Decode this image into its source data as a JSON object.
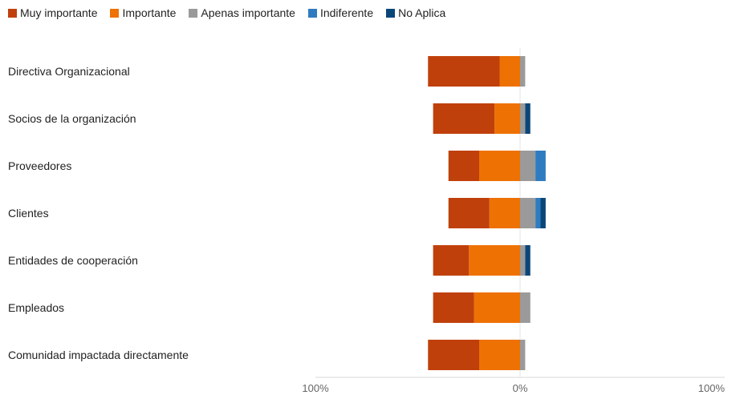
{
  "chart_data": {
    "type": "bar",
    "orientation": "horizontal",
    "stacked": "diverging",
    "legend_position": "top-left",
    "grid": false,
    "categories": [
      "Directiva Organizacional",
      "Socios de la organización",
      "Proveedores",
      "Clientes",
      "Entidades de cooperación",
      "Empleados",
      "Comunidad impactada directamente"
    ],
    "series": [
      {
        "name": "Muy importante",
        "color": "#c0400b",
        "values": [
          35,
          30,
          15,
          20,
          17.5,
          20,
          25
        ]
      },
      {
        "name": "Importante",
        "color": "#ee7103",
        "values": [
          10,
          12.5,
          20,
          15,
          25,
          22.5,
          20
        ]
      },
      {
        "name": "Apenas importante",
        "color": "#9a9a9a",
        "values": [
          2.5,
          2.5,
          7.5,
          7.5,
          2.5,
          5,
          2.5
        ]
      },
      {
        "name": "Indiferente",
        "color": "#2f7bbf",
        "values": [
          0,
          0,
          5,
          2.5,
          0,
          0,
          0
        ]
      },
      {
        "name": "No Aplica",
        "color": "#0b4678",
        "values": [
          0,
          2.5,
          0,
          2.5,
          2.5,
          0,
          0
        ]
      }
    ],
    "xlim": [
      -100,
      100
    ],
    "x_tick_labels": [
      "100%",
      "0%",
      "100%"
    ]
  }
}
